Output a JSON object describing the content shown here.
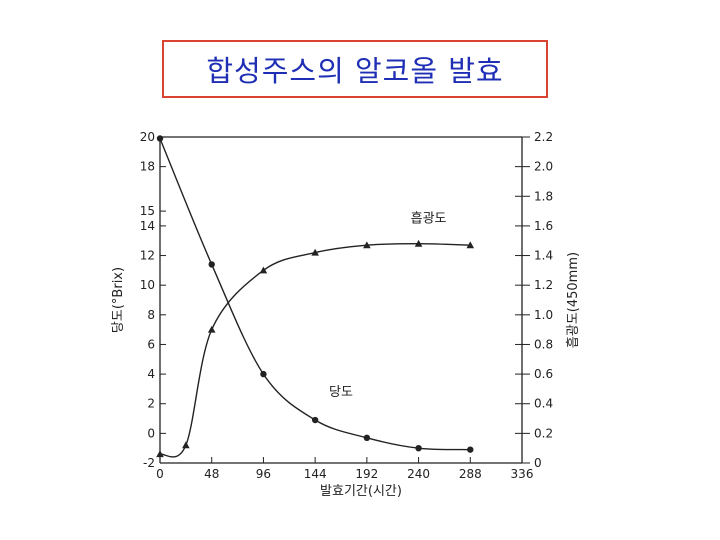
{
  "slide": {
    "title": "합성주스의 알코올 발효"
  },
  "chart_data": {
    "type": "line",
    "title": "합성주스의 알코올 발효",
    "xlabel": "발효기간(시간)",
    "ylabel_left": "당도(°Brix)",
    "ylabel_right": "흡광도(450mm)",
    "xlim": [
      0,
      336
    ],
    "ylim_left": [
      -2,
      20
    ],
    "ylim_right": [
      0,
      2.2
    ],
    "x_ticks": [
      0,
      48,
      96,
      144,
      192,
      240,
      288,
      336
    ],
    "y_left_ticks": [
      -2,
      0,
      2,
      4,
      6,
      8,
      10,
      12,
      14,
      15,
      18,
      20
    ],
    "y_right_ticks": [
      0,
      0.2,
      0.4,
      0.6,
      0.8,
      1.0,
      1.2,
      1.4,
      1.6,
      1.8,
      2.0,
      2.2
    ],
    "grid": false,
    "series": [
      {
        "name": "당도",
        "axis": "left",
        "marker": "circle",
        "x": [
          0,
          48,
          96,
          144,
          192,
          240,
          288
        ],
        "y": [
          19.9,
          11.4,
          4.0,
          0.9,
          -0.3,
          -1.0,
          -1.1
        ]
      },
      {
        "name": "흡광도",
        "axis": "right",
        "marker": "triangle",
        "x": [
          0,
          24,
          48,
          96,
          144,
          192,
          240,
          288
        ],
        "y": [
          0.06,
          0.12,
          0.9,
          1.3,
          1.42,
          1.47,
          1.48,
          1.47
        ]
      }
    ]
  }
}
